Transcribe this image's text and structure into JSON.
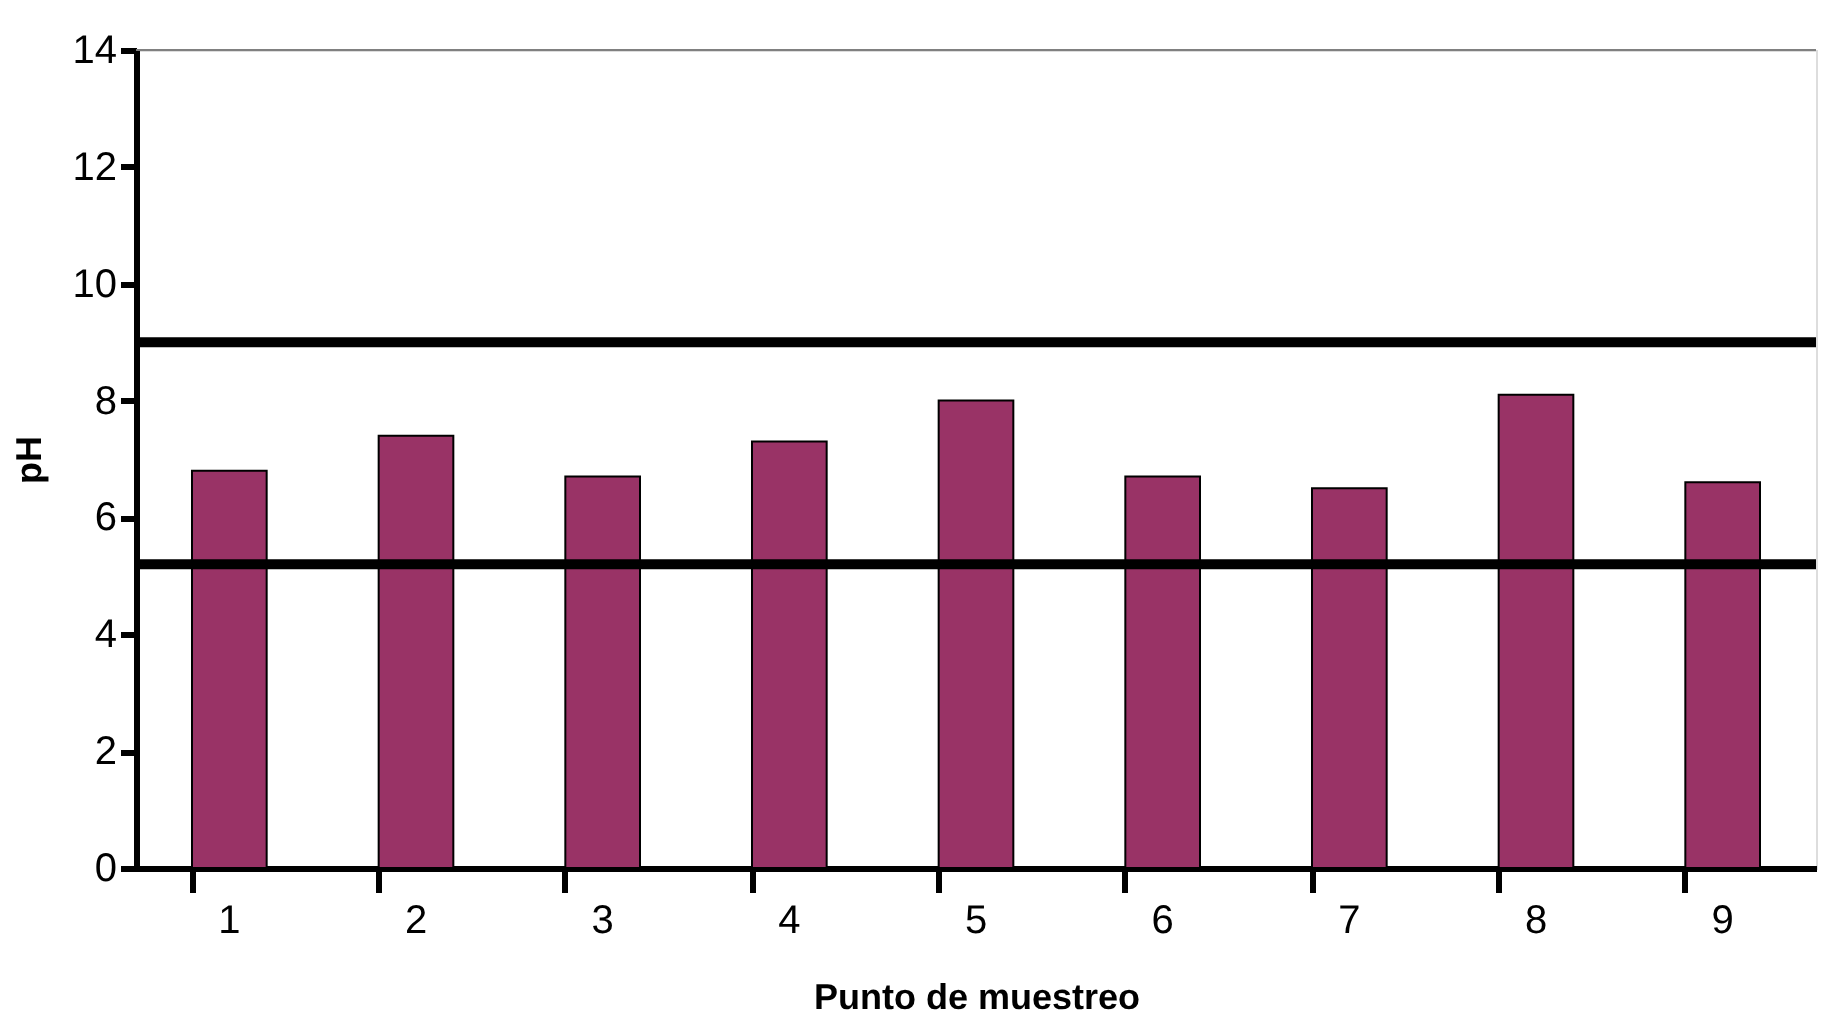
{
  "chart_data": {
    "type": "bar",
    "xlabel": "Punto de muestreo",
    "ylabel": "pH",
    "categories": [
      "1",
      "2",
      "3",
      "4",
      "5",
      "6",
      "7",
      "8",
      "9"
    ],
    "values": [
      6.8,
      7.4,
      6.7,
      7.3,
      8.0,
      6.7,
      6.5,
      8.1,
      6.6
    ],
    "color": "#993366",
    "ylim": [
      0,
      14
    ],
    "yticks": [
      0,
      2,
      4,
      6,
      8,
      10,
      12,
      14
    ],
    "grid": false,
    "ref_lines": [
      {
        "axis": "y",
        "value": 9.0,
        "color": "#000000"
      },
      {
        "axis": "y",
        "value": 5.2,
        "color": "#000000"
      },
      {
        "axis": "y",
        "value": 14,
        "color": "#808080"
      }
    ]
  }
}
